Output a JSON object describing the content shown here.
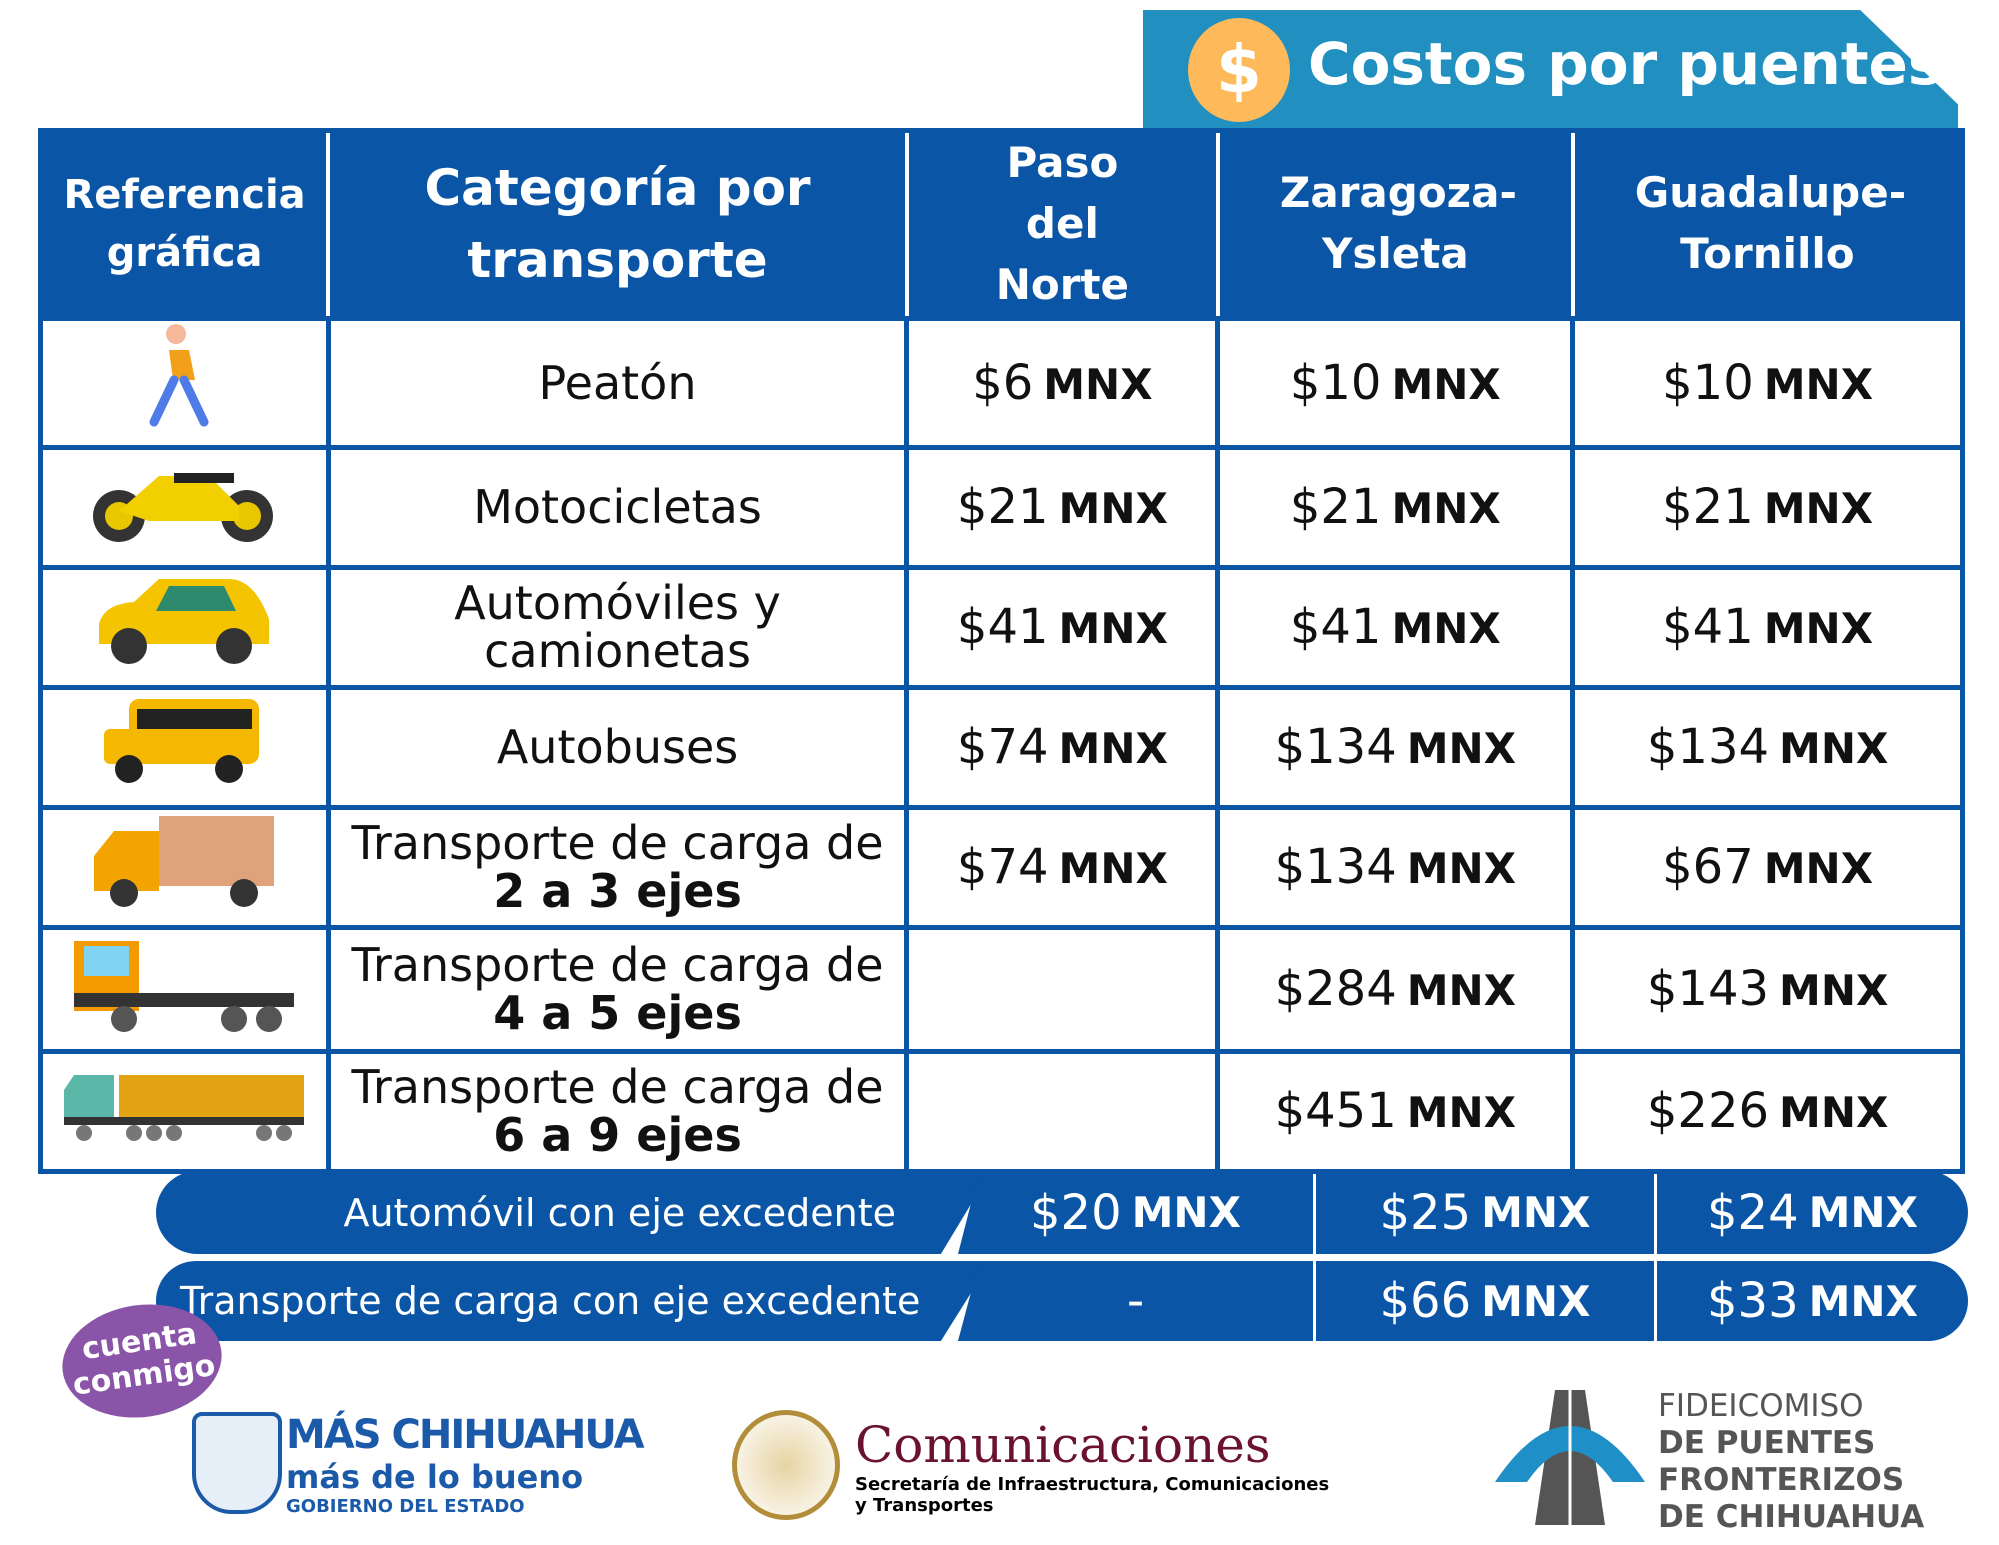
{
  "title": "Costos por puentes",
  "title_icon": "$",
  "headers": [
    "Referencia gráfica",
    "Categoría por transporte",
    "Paso del Norte",
    "Zaragoza-Ysleta",
    "Guadalupe-Tornillo"
  ],
  "currency": "MNX",
  "rows": [
    {
      "icon": "pedestrian-icon",
      "category": "Peatón",
      "bold": "",
      "prices": [
        "$6",
        "$10",
        "$10"
      ]
    },
    {
      "icon": "motorcycle-icon",
      "category": "Motocicletas",
      "bold": "",
      "prices": [
        "$21",
        "$21",
        "$21"
      ]
    },
    {
      "icon": "car-icon",
      "category": "Automóviles y camionetas",
      "bold": "",
      "prices": [
        "$41",
        "$41",
        "$41"
      ]
    },
    {
      "icon": "bus-icon",
      "category": "Autobuses",
      "bold": "",
      "prices": [
        "$74",
        "$134",
        "$134"
      ]
    },
    {
      "icon": "box-truck-icon",
      "category": "Transporte de carga de",
      "bold": "2 a 3 ejes",
      "prices": [
        "$74",
        "$134",
        "$67"
      ]
    },
    {
      "icon": "flatbed-truck-icon",
      "category": "Transporte de carga de",
      "bold": "4 a 5 ejes",
      "prices": [
        "",
        "$284",
        "$143"
      ]
    },
    {
      "icon": "semi-truck-icon",
      "category": "Transporte de carga de",
      "bold": "6 a 9 ejes",
      "prices": [
        "",
        "$451",
        "$226"
      ]
    }
  ],
  "extras": [
    {
      "label": "Automóvil con eje excedente",
      "prices": [
        "$20",
        "$25",
        "$24"
      ]
    },
    {
      "label": "Transporte de carga con eje excedente",
      "prices": [
        "-",
        "$66",
        "$33"
      ]
    }
  ],
  "logos": {
    "cuenta": "cuenta conmigo",
    "chihuahua": [
      "MÁS CHIHUAHUA",
      "más de lo bueno",
      "GOBIERNO DEL ESTADO"
    ],
    "sict": [
      "Comunicaciones",
      "Secretaría de Infraestructura, Comunicaciones",
      "y Transportes"
    ],
    "fideicomiso": [
      "FIDEICOMISO",
      "DE PUENTES",
      "FRONTERIZOS",
      "DE CHIHUAHUA"
    ]
  }
}
